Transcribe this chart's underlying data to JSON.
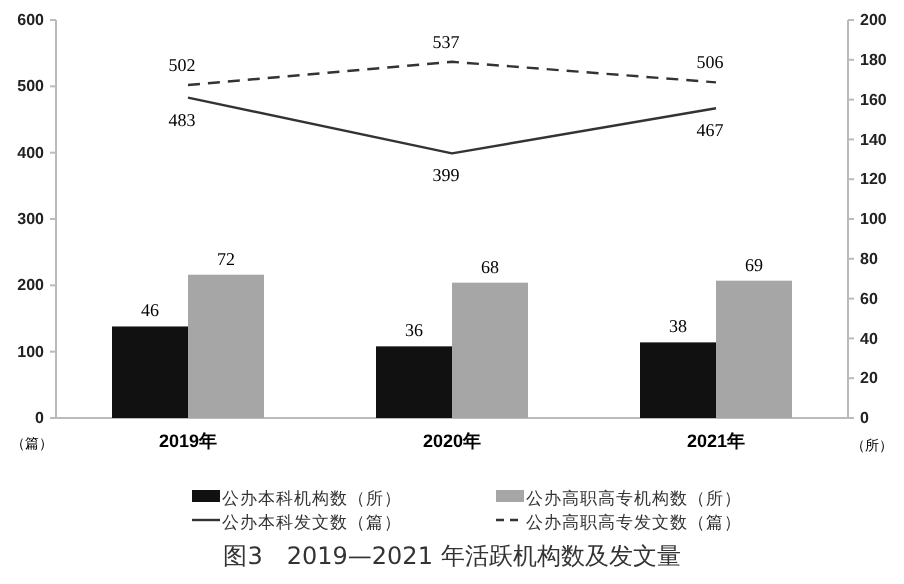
{
  "chart_data": {
    "type": "bar",
    "title": "图3　2019—2021 年活跃机构数及发文量",
    "ylabel": "（篇）",
    "y2label": "（所）",
    "categories": [
      "2019年",
      "2020年",
      "2021年"
    ],
    "series": [
      {
        "name": "公办本科机构数（所）",
        "axis": "y2",
        "color": "#111111",
        "values": [
          46,
          36,
          38
        ]
      },
      {
        "name": "公办高职高专机构数（所）",
        "axis": "y2",
        "color": "#a6a6a6",
        "values": [
          72,
          68,
          69
        ]
      },
      {
        "name": "公办本科发文数（篇）",
        "type": "line",
        "axis": "y",
        "color": "#333333",
        "line_style": "solid",
        "values": [
          483,
          399,
          467
        ]
      },
      {
        "name": "公办高职高专发文数（篇）",
        "type": "line",
        "axis": "y",
        "color": "#333333",
        "line_style": "dashed",
        "values": [
          502,
          537,
          506
        ]
      }
    ],
    "ylim": [
      0,
      600
    ],
    "yticks": [
      0,
      100,
      200,
      300,
      400,
      500,
      600
    ],
    "y2lim": [
      0,
      200
    ],
    "y2ticks": [
      0,
      20,
      40,
      60,
      80,
      100,
      120,
      140,
      160,
      180,
      200
    ],
    "data_labels": true,
    "legend": "bottom",
    "marker": "none"
  }
}
